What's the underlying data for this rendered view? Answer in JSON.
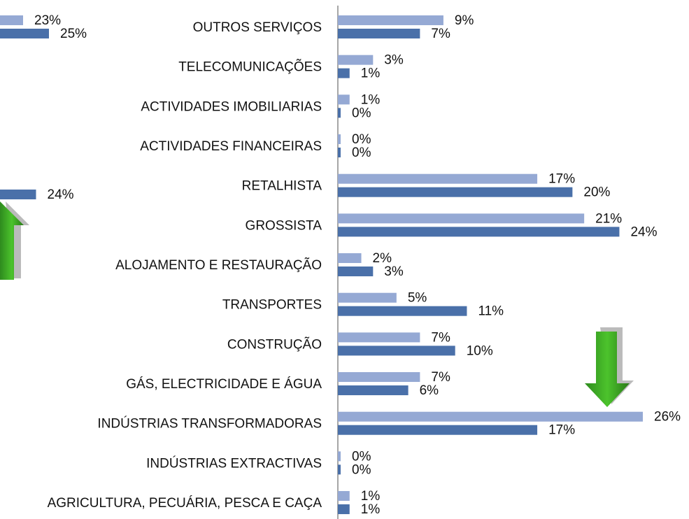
{
  "chart_data": [
    {
      "type": "hbar",
      "categories": [
        null,
        null
      ],
      "series": [
        {
          "color": "#95a9d4",
          "values": [
            23,
            null
          ],
          "value_labels": [
            "23%",
            null
          ]
        },
        {
          "color": "#4a70a9",
          "values": [
            25,
            24
          ],
          "value_labels": [
            "25%",
            "24%"
          ]
        }
      ]
    },
    {
      "type": "hbar",
      "xlim": [
        0,
        26
      ],
      "categories": [
        "OUTROS SERVIÇOS",
        "TELECOMUNICAÇÕES",
        "ACTIVIDADES IMOBILIARIAS",
        "ACTIVIDADES FINANCEIRAS",
        "RETALHISTA",
        "GROSSISTA",
        "ALOJAMENTO E RESTAURAÇÃO",
        "TRANSPORTES",
        "CONSTRUÇÃO",
        "GÁS, ELECTRICIDADE E ÁGUA",
        "INDÚSTRIAS TRANSFORMADORAS",
        "INDÚSTRIAS EXTRACTIVAS",
        "AGRICULTURA, PECUÁRIA, PESCA E CAÇA"
      ],
      "series": [
        {
          "color": "#95a9d4",
          "values": [
            9,
            3,
            1,
            0,
            17,
            21,
            2,
            5,
            7,
            7,
            26,
            0,
            1
          ],
          "value_labels": [
            "9%",
            "3%",
            "1%",
            "0%",
            "17%",
            "21%",
            "2%",
            "5%",
            "7%",
            "7%",
            "26%",
            "0%",
            "1%"
          ]
        },
        {
          "color": "#4a70a9",
          "values": [
            7,
            1,
            0,
            0,
            20,
            24,
            3,
            11,
            10,
            6,
            17,
            0,
            1
          ],
          "value_labels": [
            "7%",
            "1%",
            "0%",
            "0%",
            "20%",
            "24%",
            "3%",
            "11%",
            "10%",
            "6%",
            "17%",
            "0%",
            "1%"
          ]
        }
      ]
    }
  ]
}
